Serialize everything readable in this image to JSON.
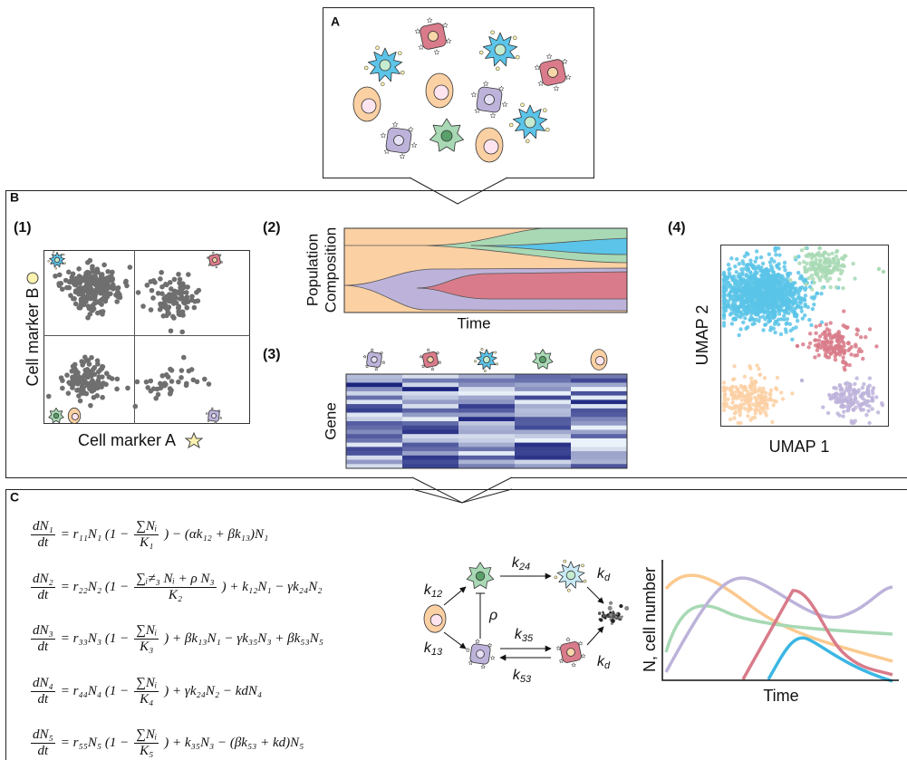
{
  "labels": {
    "a": "A",
    "b": "B",
    "c": "C"
  },
  "b1": {
    "label": "(1)",
    "y_axis": "Cell marker B",
    "x_axis": "Cell marker A"
  },
  "b2": {
    "label": "(2)",
    "y_axis": [
      "Population",
      "Composition"
    ],
    "x_axis": "Time"
  },
  "b3": {
    "label": "(3)",
    "y_axis": "Gene"
  },
  "b4": {
    "label": "(4)",
    "x_axis": "UMAP 1",
    "y_axis": "UMAP 2"
  },
  "equations": [
    {
      "num": "dN₁",
      "den": "dt",
      "pre": "= r₁₁N₁ (1 −",
      "fnum": "∑Nᵢ",
      "fden": "K₁",
      "post": ") − (αk₁₂ + βk₁₃)N₁"
    },
    {
      "num": "dN₂",
      "den": "dt",
      "pre": "= r₂₂N₂ (1 −",
      "fnum": "∑ᵢ≠₃ Nᵢ + ρ N₃",
      "fden": "K₂",
      "post": ") + k₁₂N₁ − γk₂₄N₂"
    },
    {
      "num": "dN₃",
      "den": "dt",
      "pre": "= r₃₃N₃ (1 −",
      "fnum": "∑Nᵢ",
      "fden": "K₃",
      "post": ") + βk₁₃N₁ − γk₃₅N₃ + βk₅₃N₅"
    },
    {
      "num": "dN₄",
      "den": "dt",
      "pre": "= r₄₄N₄ (1 −",
      "fnum": "∑Nᵢ",
      "fden": "K₄",
      "post": ") + γk₂₄N₂ − kdN₄"
    },
    {
      "num": "dN₅",
      "den": "dt",
      "pre": "= r₅₅N₅ (1 −",
      "fnum": "∑Nᵢ",
      "fden": "K₅",
      "post": ") + k₃₅N₃ − (βk₅₃ + kd)N₅"
    }
  ],
  "network": {
    "rates": [
      {
        "base": "k",
        "sub": "12"
      },
      {
        "base": "k",
        "sub": "13"
      },
      {
        "base": "k",
        "sub": "24"
      },
      {
        "base": "k",
        "sub": "35"
      },
      {
        "base": "k",
        "sub": "53"
      },
      {
        "base": "k",
        "sub": "d"
      },
      {
        "base": "k",
        "sub": "d"
      }
    ],
    "rho": "ρ"
  },
  "dynamics": {
    "y_axis": "N, cell number",
    "x_axis": "Time"
  }
}
